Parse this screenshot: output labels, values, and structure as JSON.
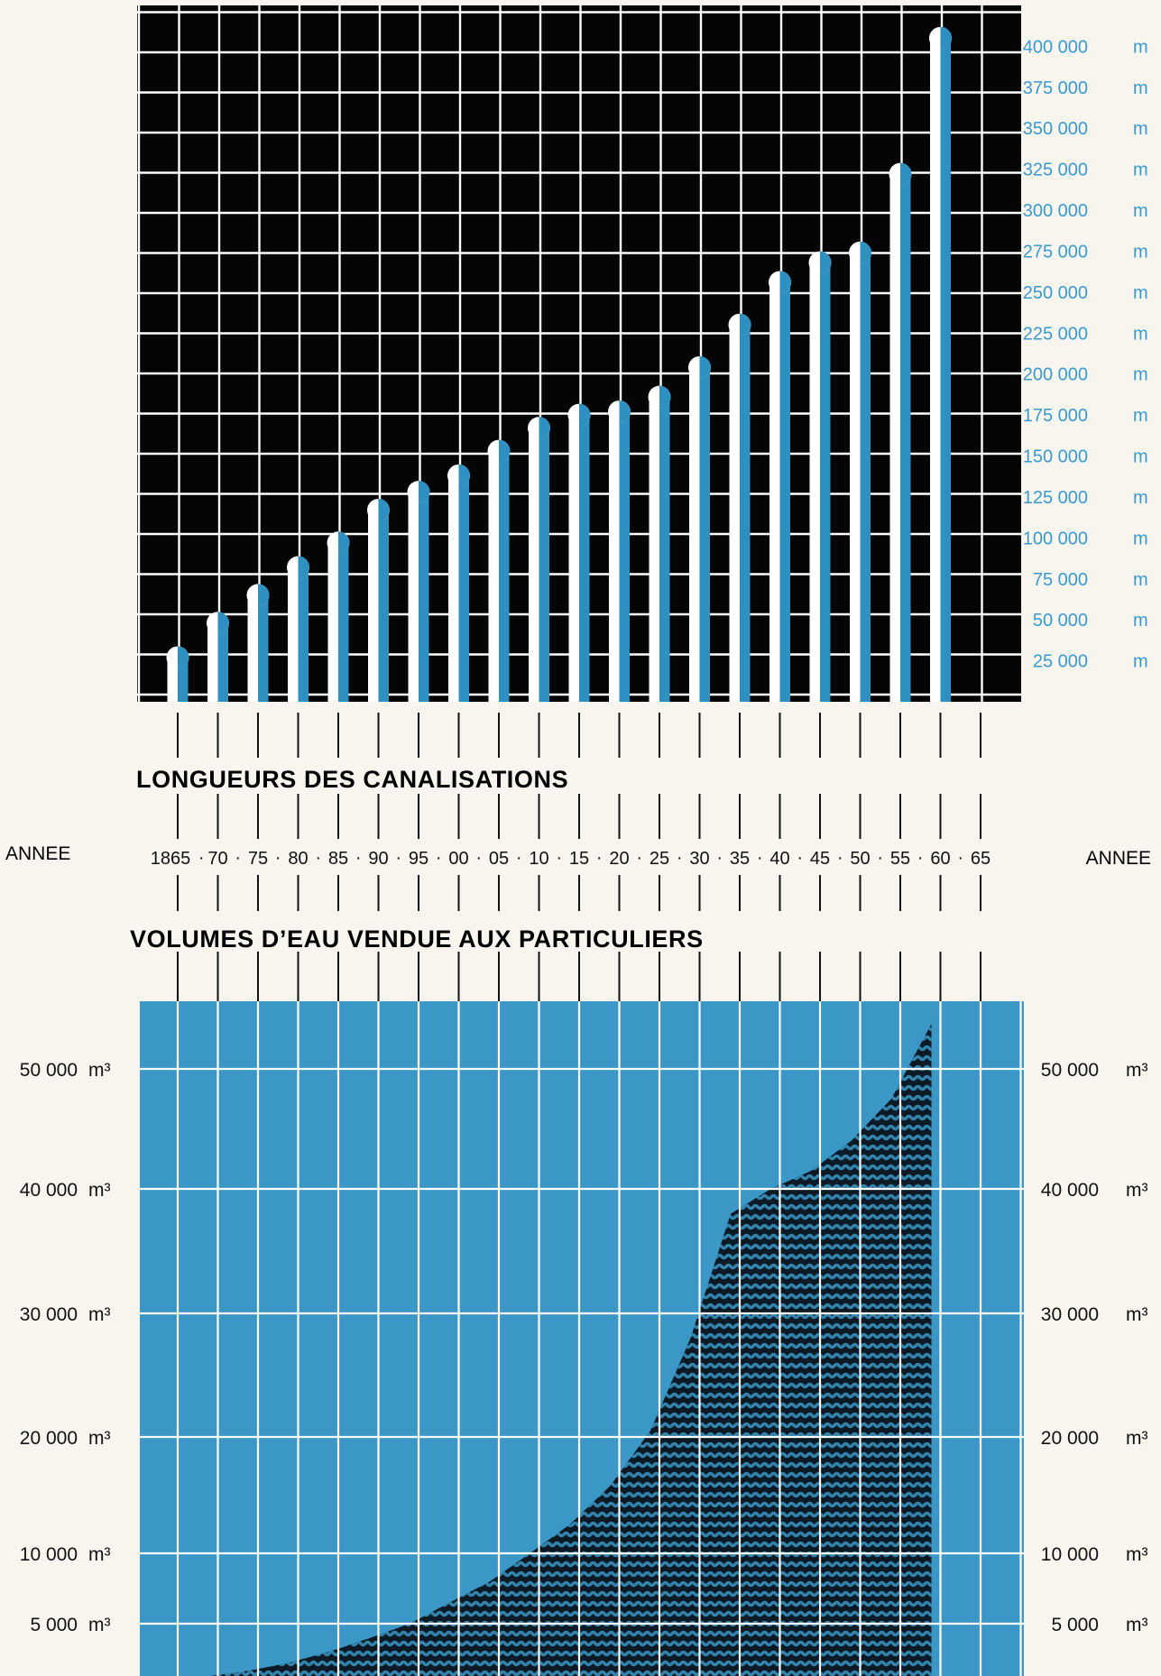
{
  "colors": {
    "top_background": "#050505",
    "grid": "#ffffff",
    "bar_blue": "#2e8fc1",
    "bar_white": "#ffffff",
    "axis_blue": "#3a9ad0",
    "bottom_background": "#3b97c6",
    "area": "#0b1a24",
    "paper": "#f7f5ee",
    "text": "#111111"
  },
  "chart_data": [
    {
      "type": "bar",
      "title": "LONGUEURS DES CANALISATIONS",
      "xlabel": "ANNEE",
      "ylabel": "",
      "y_unit": "m",
      "categories": [
        "1865",
        "70",
        "75",
        "80",
        "85",
        "90",
        "95",
        "00",
        "05",
        "10",
        "15",
        "20",
        "25",
        "30",
        "35",
        "40",
        "45",
        "50",
        "55",
        "60",
        "65"
      ],
      "values": [
        27000,
        48000,
        65000,
        82000,
        97000,
        117000,
        128000,
        138000,
        153000,
        167000,
        175000,
        177000,
        186000,
        204000,
        230000,
        256000,
        268000,
        274000,
        322000,
        405000,
        null
      ],
      "ylim": [
        0,
        425000
      ],
      "y_ticks": [
        {
          "value": 25000,
          "label": "25 000"
        },
        {
          "value": 50000,
          "label": "50 000"
        },
        {
          "value": 75000,
          "label": "75 000"
        },
        {
          "value": 100000,
          "label": "100 000"
        },
        {
          "value": 125000,
          "label": "125 000"
        },
        {
          "value": 150000,
          "label": "150 000"
        },
        {
          "value": 175000,
          "label": "175 000"
        },
        {
          "value": 200000,
          "label": "200 000"
        },
        {
          "value": 225000,
          "label": "225 000"
        },
        {
          "value": 250000,
          "label": "250 000"
        },
        {
          "value": 275000,
          "label": "275 000"
        },
        {
          "value": 300000,
          "label": "300 000"
        },
        {
          "value": 325000,
          "label": "325 000"
        },
        {
          "value": 350000,
          "label": "350 000"
        },
        {
          "value": 375000,
          "label": "375 000"
        },
        {
          "value": 400000,
          "label": "400 000"
        }
      ],
      "grid": true,
      "y_axis_position": "right"
    },
    {
      "type": "area",
      "title": "VOLUMES D’EAU VENDUE AUX PARTICULIERS",
      "xlabel": "ANNEE",
      "ylabel": "",
      "y_unit": "m³",
      "x": [
        "1865",
        "70",
        "75",
        "80",
        "85",
        "90",
        "95",
        "00",
        "05",
        "10",
        "15",
        "20",
        "25",
        "30",
        "35",
        "40",
        "45",
        "50",
        "55",
        "60"
      ],
      "values": [
        0,
        300,
        800,
        1500,
        2500,
        3700,
        5000,
        6500,
        8000,
        10000,
        12500,
        15800,
        20500,
        28000,
        38000,
        40000,
        41500,
        44000,
        47500,
        57000
      ],
      "y_ticks": [
        {
          "value": 5000,
          "label": "5 000"
        },
        {
          "value": 10000,
          "label": "10 000"
        },
        {
          "value": 20000,
          "label": "20 000"
        },
        {
          "value": 30000,
          "label": "30 000"
        },
        {
          "value": 40000,
          "label": "40 000"
        },
        {
          "value": 50000,
          "label": "50 000"
        }
      ],
      "grid": true,
      "y_axis_position": "both"
    }
  ]
}
